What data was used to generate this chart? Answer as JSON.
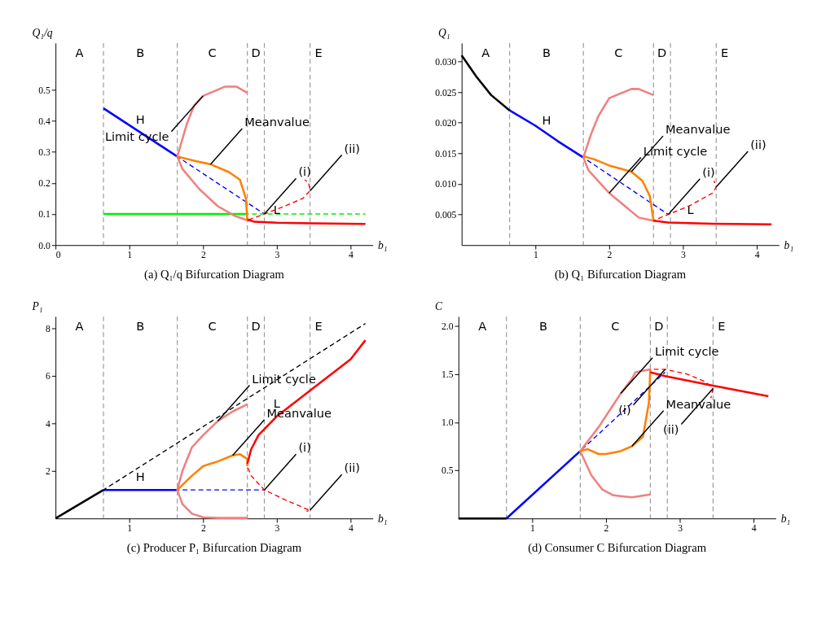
{
  "chart_data": [
    {
      "type": "line",
      "title": "(a)  Q₁/q Bifurcation Diagram",
      "xlabel": "b₁",
      "ylabel": "Q₁/q",
      "xlim": [
        0,
        4.3
      ],
      "ylim": [
        0,
        0.65
      ],
      "xticks": [
        0,
        1,
        2,
        3,
        4
      ],
      "yticks": [
        {
          "value": 0,
          "label": "0.0"
        },
        0.1,
        0.2,
        0.3,
        0.4,
        0.5
      ],
      "grid": false,
      "series": [
        {
          "name": "H",
          "color": "#0000ff",
          "line_style": "solid",
          "x": [
            0.65,
            1.65
          ],
          "values": [
            0.44,
            0.285
          ]
        },
        {
          "color": "#0000ff",
          "line_style": "dashed",
          "x": [
            1.65,
            2.83
          ],
          "values": [
            0.285,
            0.1
          ]
        },
        {
          "color": "#00ee00",
          "line_style": "solid",
          "x": [
            0.65,
            2.6
          ],
          "values": [
            0.1,
            0.1
          ]
        },
        {
          "color": "#00ee00",
          "line_style": "dashed",
          "x": [
            2.6,
            4.2
          ],
          "values": [
            0.1,
            0.1
          ]
        },
        {
          "color": "#f08080",
          "line_style": "solid",
          "x": [
            2.6,
            2.45,
            2.3,
            2.0,
            1.88,
            1.78,
            1.65,
            1.72,
            1.95,
            2.2,
            2.42,
            2.6
          ],
          "values": [
            0.49,
            0.51,
            0.51,
            0.48,
            0.45,
            0.39,
            0.285,
            0.245,
            0.18,
            0.125,
            0.095,
            0.08
          ]
        },
        {
          "color": "#ff8000",
          "line_style": "solid",
          "x": [
            1.65,
            1.9,
            2.1,
            2.35,
            2.5,
            2.58,
            2.6
          ],
          "values": [
            0.285,
            0.27,
            0.26,
            0.235,
            0.21,
            0.15,
            0.08
          ]
        },
        {
          "name": "L",
          "color": "#ff0000",
          "line_style": "solid",
          "x": [
            2.6,
            2.7,
            3.0,
            3.5,
            4.2
          ],
          "values": [
            0.082,
            0.075,
            0.072,
            0.07,
            0.068
          ]
        },
        {
          "color": "#ff0000",
          "line_style": "dashed",
          "x": [
            2.6,
            2.83,
            3.1,
            3.35,
            3.45,
            3.43,
            3.38
          ],
          "values": [
            0.08,
            0.1,
            0.125,
            0.15,
            0.175,
            0.2,
            0.21
          ]
        }
      ],
      "ref_lines": [
        {
          "axis": "x",
          "value": 0.65,
          "color": "#999999",
          "line_style": "dashed"
        },
        {
          "axis": "x",
          "value": 1.65,
          "color": "#999999",
          "line_style": "dashed"
        },
        {
          "axis": "x",
          "value": 2.6,
          "color": "#999999",
          "line_style": "dashed"
        },
        {
          "axis": "x",
          "value": 2.83,
          "color": "#999999",
          "line_style": "dashed"
        },
        {
          "axis": "x",
          "value": 3.45,
          "color": "#999999",
          "line_style": "dashed"
        }
      ],
      "annotations": [
        "A",
        "B",
        "C",
        "D",
        "E",
        {
          "text": "Limit cycle",
          "x": 2.0,
          "y": 0.48
        },
        {
          "text": "Meanvalue",
          "x": 2.1,
          "y": 0.26
        },
        {
          "text": "(i)",
          "x": 2.83,
          "y": 0.1
        },
        {
          "text": "(ii)",
          "x": 3.45,
          "y": 0.175
        }
      ]
    },
    {
      "type": "line",
      "title": "(b)  Q₁ Bifurcation Diagram",
      "xlabel": "b₁",
      "ylabel": "Q₁",
      "xlim": [
        0,
        4.3
      ],
      "ylim": [
        0,
        0.033
      ],
      "xticks": [
        1,
        2,
        3,
        4
      ],
      "yticks": [
        0.005,
        {
          "value": 0.01,
          "label": "0.010"
        },
        0.015,
        {
          "value": 0.02,
          "label": "0.020"
        },
        0.025,
        {
          "value": 0.03,
          "label": "0.030"
        }
      ],
      "grid": false,
      "series": [
        {
          "color": "#000000",
          "line_style": "solid",
          "x": [
            0,
            0.2,
            0.4,
            0.65
          ],
          "values": [
            0.031,
            0.0275,
            0.0245,
            0.022
          ]
        },
        {
          "name": "H",
          "color": "#0000ff",
          "line_style": "solid",
          "x": [
            0.65,
            1.0,
            1.3,
            1.65
          ],
          "values": [
            0.022,
            0.0195,
            0.017,
            0.0143
          ]
        },
        {
          "color": "#0000ff",
          "line_style": "dashed",
          "x": [
            1.65,
            2.8
          ],
          "values": [
            0.0143,
            0.005
          ]
        },
        {
          "color": "#f08080",
          "line_style": "solid",
          "x": [
            2.6,
            2.4,
            2.3,
            2.0,
            1.85,
            1.75,
            1.65,
            1.72,
            2.0,
            2.3,
            2.4,
            2.6
          ],
          "values": [
            0.0245,
            0.0255,
            0.0255,
            0.024,
            0.021,
            0.018,
            0.0143,
            0.0122,
            0.0085,
            0.0055,
            0.0045,
            0.004
          ]
        },
        {
          "color": "#ff8000",
          "line_style": "solid",
          "x": [
            1.65,
            1.8,
            2.0,
            2.3,
            2.45,
            2.55,
            2.6
          ],
          "values": [
            0.0145,
            0.014,
            0.013,
            0.012,
            0.0105,
            0.008,
            0.004
          ]
        },
        {
          "name": "L",
          "color": "#ff0000",
          "line_style": "solid",
          "x": [
            2.6,
            2.8,
            3.4,
            4.2
          ],
          "values": [
            0.004,
            0.0037,
            0.0035,
            0.0034
          ]
        },
        {
          "color": "#ff0000",
          "line_style": "dashed",
          "x": [
            2.6,
            2.8,
            3.1,
            3.4,
            3.45,
            3.42
          ],
          "values": [
            0.004,
            0.005,
            0.0065,
            0.0085,
            0.0095,
            0.0105
          ]
        }
      ],
      "ref_lines": [
        {
          "axis": "x",
          "value": 0.65,
          "color": "#999999",
          "line_style": "dashed"
        },
        {
          "axis": "x",
          "value": 1.65,
          "color": "#999999",
          "line_style": "dashed"
        },
        {
          "axis": "x",
          "value": 2.6,
          "color": "#999999",
          "line_style": "dashed"
        },
        {
          "axis": "x",
          "value": 2.83,
          "color": "#999999",
          "line_style": "dashed"
        },
        {
          "axis": "x",
          "value": 3.45,
          "color": "#999999",
          "line_style": "dashed"
        }
      ],
      "annotations": [
        "A",
        "B",
        "C",
        "D",
        "E",
        {
          "text": "Meanvalue",
          "x": 2.3,
          "y": 0.012
        },
        {
          "text": "Limit cycle",
          "x": 2.0,
          "y": 0.0085
        },
        {
          "text": "(i)",
          "x": 2.8,
          "y": 0.005
        },
        {
          "text": "(ii)",
          "x": 3.45,
          "y": 0.0095
        }
      ]
    },
    {
      "type": "line",
      "title": "(c)  Producer P₁ Bifurcation Diagram",
      "xlabel": "b₁",
      "ylabel": "P₁",
      "xlim": [
        0,
        4.3
      ],
      "ylim": [
        0,
        8.5
      ],
      "xticks": [
        1,
        2,
        3,
        4
      ],
      "yticks": [
        2,
        4,
        6,
        8
      ],
      "grid": false,
      "series": [
        {
          "color": "#000000",
          "line_style": "solid",
          "x": [
            0,
            0.65
          ],
          "values": [
            0,
            1.2
          ]
        },
        {
          "name": "H",
          "color": "#0000ff",
          "line_style": "solid",
          "x": [
            0.65,
            1.65
          ],
          "values": [
            1.2,
            1.2
          ]
        },
        {
          "color": "#0000ff",
          "line_style": "dashed",
          "x": [
            1.65,
            2.83
          ],
          "values": [
            1.2,
            1.2
          ]
        },
        {
          "color": "#000000",
          "line_style": "dashed",
          "x": [
            0.65,
            4.2
          ],
          "values": [
            1.2,
            8.2
          ]
        },
        {
          "color": "#f08080",
          "line_style": "solid",
          "x": [
            2.6,
            2.4,
            2.2,
            2.0,
            1.85,
            1.72,
            1.65,
            1.72,
            1.85,
            2.0,
            2.2,
            2.6
          ],
          "values": [
            4.8,
            4.5,
            4.1,
            3.5,
            3.0,
            2.0,
            1.2,
            0.6,
            0.2,
            0.05,
            0.02,
            0.02
          ]
        },
        {
          "color": "#ff8000",
          "line_style": "solid",
          "x": [
            1.65,
            1.85,
            2.0,
            2.2,
            2.4,
            2.5,
            2.6,
            2.6
          ],
          "values": [
            1.2,
            1.8,
            2.2,
            2.4,
            2.65,
            2.7,
            2.5,
            2.2
          ]
        },
        {
          "name": "L",
          "color": "#ff0000",
          "line_style": "solid",
          "x": [
            2.6,
            2.65,
            2.75,
            3.0,
            3.5,
            4.0,
            4.2
          ],
          "values": [
            2.3,
            2.9,
            3.5,
            4.3,
            5.5,
            6.7,
            7.5
          ]
        },
        {
          "color": "#ff0000",
          "line_style": "dashed",
          "x": [
            2.6,
            2.65,
            2.83,
            3.1,
            3.4,
            3.45,
            3.4
          ],
          "values": [
            2.2,
            1.8,
            1.2,
            0.8,
            0.4,
            0.35,
            0.3
          ]
        }
      ],
      "ref_lines": [
        {
          "axis": "x",
          "value": 0.65,
          "color": "#999999",
          "line_style": "dashed"
        },
        {
          "axis": "x",
          "value": 1.65,
          "color": "#999999",
          "line_style": "dashed"
        },
        {
          "axis": "x",
          "value": 2.6,
          "color": "#999999",
          "line_style": "dashed"
        },
        {
          "axis": "x",
          "value": 2.83,
          "color": "#999999",
          "line_style": "dashed"
        },
        {
          "axis": "x",
          "value": 3.45,
          "color": "#999999",
          "line_style": "dashed"
        }
      ],
      "annotations": [
        "A",
        "B",
        "C",
        "D",
        "E",
        {
          "text": "Limit cycle",
          "x": 2.2,
          "y": 4.1
        },
        {
          "text": "Meanvalue",
          "x": 2.4,
          "y": 2.65
        },
        {
          "text": "(i)",
          "x": 2.83,
          "y": 1.2
        },
        {
          "text": "(ii)",
          "x": 3.45,
          "y": 0.35
        }
      ]
    },
    {
      "type": "line",
      "title": "(d)  Consumer C Bifurcation Diagram",
      "xlabel": "b₁",
      "ylabel": "C",
      "xlim": [
        0,
        4.3
      ],
      "ylim": [
        0,
        2.1
      ],
      "xticks": [
        1,
        2,
        3,
        4
      ],
      "yticks": [
        0.5,
        {
          "value": 1,
          "label": "1.0"
        },
        1.5,
        {
          "value": 2,
          "label": "2.0"
        }
      ],
      "grid": false,
      "series": [
        {
          "color": "#000000",
          "line_style": "solid",
          "x": [
            0,
            0.65
          ],
          "values": [
            0,
            0
          ]
        },
        {
          "color": "#0000ff",
          "line_style": "solid",
          "x": [
            0.65,
            1.65
          ],
          "values": [
            0,
            0.7
          ]
        },
        {
          "color": "#0000ff",
          "line_style": "dashed",
          "x": [
            1.65,
            2.8
          ],
          "values": [
            0.7,
            1.52
          ]
        },
        {
          "color": "#f08080",
          "line_style": "solid",
          "x": [
            2.6,
            2.4,
            2.35,
            2.2,
            1.9,
            1.65,
            1.8,
            1.95,
            2.1,
            2.35,
            2.6
          ],
          "values": [
            1.55,
            1.52,
            1.45,
            1.3,
            0.95,
            0.7,
            0.45,
            0.3,
            0.24,
            0.22,
            0.25
          ]
        },
        {
          "color": "#ff8000",
          "line_style": "solid",
          "x": [
            1.65,
            1.75,
            1.9,
            2.0,
            2.2,
            2.35,
            2.5,
            2.58,
            2.6
          ],
          "values": [
            0.7,
            0.72,
            0.67,
            0.67,
            0.7,
            0.75,
            0.85,
            1.2,
            1.55
          ]
        },
        {
          "color": "#ff0000",
          "line_style": "solid",
          "x": [
            2.6,
            2.8,
            3.45,
            4.2
          ],
          "values": [
            1.52,
            1.48,
            1.38,
            1.27
          ]
        },
        {
          "color": "#ff0000",
          "line_style": "dashed",
          "x": [
            2.6,
            2.8,
            3.1,
            3.35,
            3.45,
            3.42
          ],
          "values": [
            1.55,
            1.55,
            1.5,
            1.42,
            1.35,
            1.25
          ]
        }
      ],
      "ref_lines": [
        {
          "axis": "x",
          "value": 0.65,
          "color": "#999999",
          "line_style": "dashed"
        },
        {
          "axis": "x",
          "value": 1.65,
          "color": "#999999",
          "line_style": "dashed"
        },
        {
          "axis": "x",
          "value": 2.6,
          "color": "#999999",
          "line_style": "dashed"
        },
        {
          "axis": "x",
          "value": 2.83,
          "color": "#999999",
          "line_style": "dashed"
        },
        {
          "axis": "x",
          "value": 3.45,
          "color": "#999999",
          "line_style": "dashed"
        }
      ],
      "annotations": [
        "A",
        "B",
        "C",
        "D",
        "E",
        {
          "text": "Limit cycle",
          "x": 2.2,
          "y": 1.3
        },
        {
          "text": "Meanvalue",
          "x": 2.35,
          "y": 0.75
        },
        {
          "text": "(i)",
          "x": 2.8,
          "y": 1.55
        },
        {
          "text": "(ii)",
          "x": 3.45,
          "y": 1.35
        }
      ]
    }
  ]
}
